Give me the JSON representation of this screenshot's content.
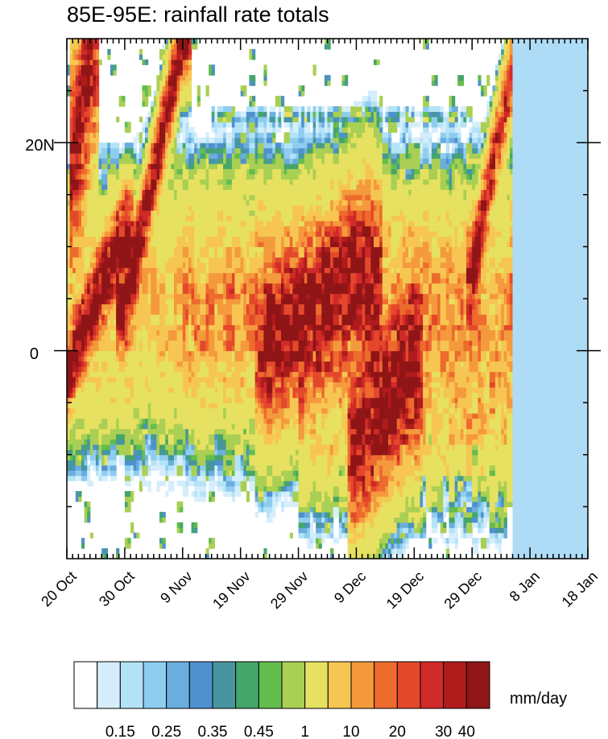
{
  "chart_data": {
    "type": "heatmap",
    "title": "85E-95E: rainfall rate totals",
    "x_ticks": [
      "20 Oct",
      "30 Oct",
      "9 Nov",
      "19 Nov",
      "29 Nov",
      "9 Dec",
      "19 Dec",
      "29 Dec",
      "8 Jan",
      "18 Jan"
    ],
    "x_range": [
      "20 Oct",
      "18 Jan"
    ],
    "data_end": "5 Jan",
    "y_ticks": [
      "20N",
      "0"
    ],
    "y_range": [
      -20,
      30
    ],
    "colorbar": {
      "unit": "mm/day",
      "labels": [
        "0.15",
        "0.25",
        "0.35",
        "0.45",
        "1",
        "10",
        "20",
        "30",
        "40"
      ],
      "levels": [
        0.1,
        0.15,
        0.2,
        0.25,
        0.3,
        0.35,
        0.4,
        0.45,
        0.5,
        1,
        5,
        10,
        15,
        20,
        25,
        30,
        35,
        40
      ],
      "colors": [
        "#ffffff",
        "#d6eefb",
        "#b3e3f7",
        "#8ecdf0",
        "#6aaedd",
        "#4f91cf",
        "#47969f",
        "#45a56b",
        "#63bd4d",
        "#a9cf54",
        "#e6e160",
        "#f7c652",
        "#f49a3c",
        "#ed6b2d",
        "#e4482b",
        "#d02a29",
        "#b01b1c",
        "#8f1517"
      ]
    },
    "no_data_color": "#aedcf6",
    "grid": false,
    "features": [
      {
        "desc": "northward band",
        "x_start_day": 10,
        "x_end_day": 20,
        "lat_start": 4,
        "lat_end": 30,
        "intensity": 40
      },
      {
        "desc": "northward band",
        "x_start_day": 1,
        "x_end_day": 5,
        "lat_start": 18,
        "lat_end": 30,
        "intensity": 35
      },
      {
        "desc": "equatorial maximum",
        "x_start_day": 0,
        "x_end_day": 10,
        "lat_start": -2,
        "lat_end": 12,
        "intensity": 40
      },
      {
        "desc": "equatorial maximum",
        "x_start_day": 35,
        "x_end_day": 52,
        "lat_start": 0,
        "lat_end": 9,
        "intensity": 30
      },
      {
        "desc": "southern maximum",
        "x_start_day": 50,
        "x_end_day": 60,
        "lat_start": -10,
        "lat_end": -1,
        "intensity": 35
      },
      {
        "desc": "northward band",
        "x_start_day": 70,
        "x_end_day": 78,
        "lat_start": 8,
        "lat_end": 30,
        "intensity": 30
      }
    ]
  }
}
